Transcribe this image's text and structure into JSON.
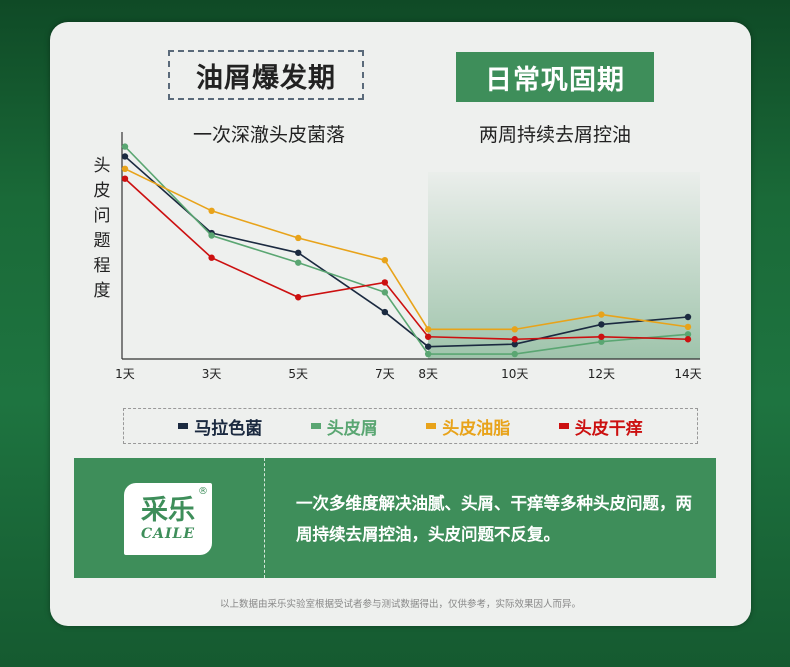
{
  "phases": {
    "left_title": "油屑爆发期",
    "left_subtitle": "一次深澈头皮菌落",
    "right_title": "日常巩固期",
    "right_subtitle": "两周持续去屑控油"
  },
  "colors": {
    "brand_green": "#3e8e5a",
    "series": [
      "#1b2a40",
      "#5aa672",
      "#e8a31a",
      "#cc1010"
    ]
  },
  "chart_data": {
    "type": "line",
    "ylabel": "头皮问题程度",
    "x": [
      "1天",
      "3天",
      "5天",
      "7天",
      "8天",
      "10天",
      "12天",
      "14天"
    ],
    "series": [
      {
        "name": "马拉色菌",
        "values": [
          82,
          51,
          43,
          19,
          5,
          6,
          14,
          17
        ]
      },
      {
        "name": "头皮屑",
        "values": [
          86,
          50,
          39,
          27,
          2,
          2,
          7,
          10
        ]
      },
      {
        "name": "头皮油脂",
        "values": [
          77,
          60,
          49,
          40,
          12,
          12,
          18,
          13
        ]
      },
      {
        "name": "头皮干痒",
        "values": [
          73,
          41,
          25,
          31,
          9,
          8,
          9,
          8
        ]
      }
    ],
    "ylim": [
      0,
      100
    ],
    "grid": false,
    "legend": "bottom"
  },
  "legend": [
    {
      "label": "马拉色菌",
      "color": "#1b2a40"
    },
    {
      "label": "头皮屑",
      "color": "#5aa672"
    },
    {
      "label": "头皮油脂",
      "color": "#e8a31a"
    },
    {
      "label": "头皮干痒",
      "color": "#cc1010"
    }
  ],
  "info": {
    "logo_cn": "采乐",
    "logo_en": "CAILE",
    "logo_reg": "®",
    "text": "一次多维度解决油腻、头屑、干痒等多种头皮问题，两周持续去屑控油，头皮问题不反复。"
  },
  "footnote": "以上数据由采乐实验室根据受试者参与测试数据得出，仅供参考，实际效果因人而异。"
}
